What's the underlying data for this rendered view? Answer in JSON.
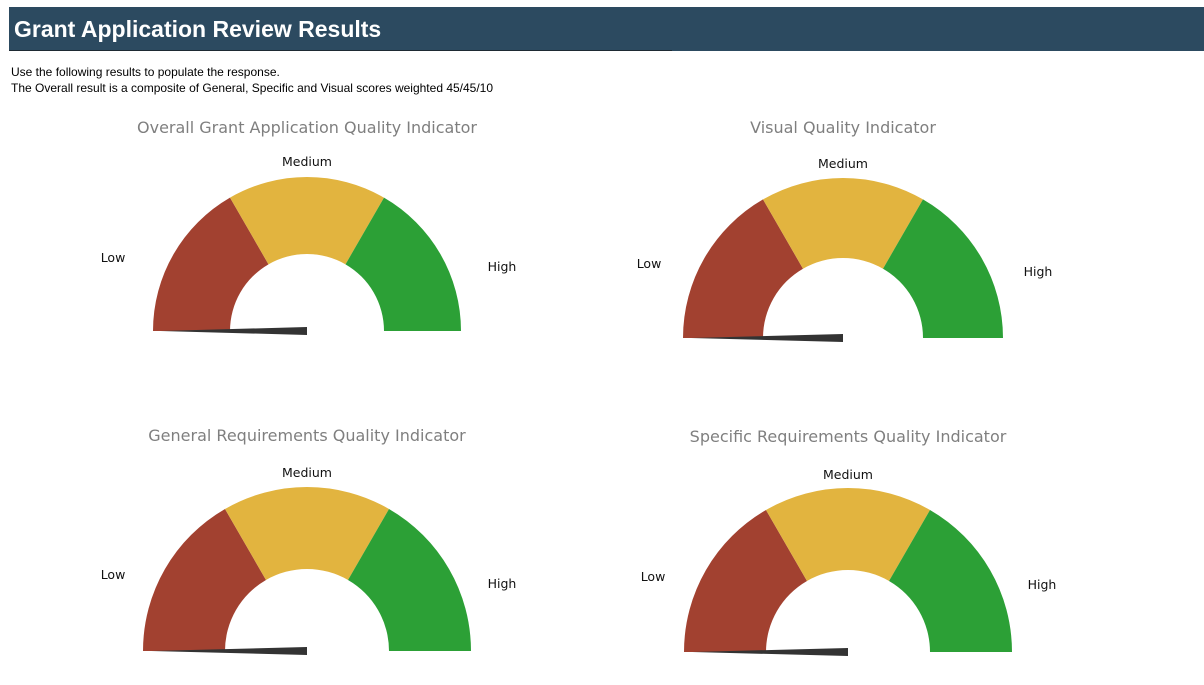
{
  "header": {
    "title": "Grant Application Review Results"
  },
  "notes": {
    "line1": "Use the following results to populate the response.",
    "line2": "The Overall result is a composite of General, Specific and Visual scores weighted 45/45/10"
  },
  "colors": {
    "header_bg": "#2c4a60",
    "low": "#a24130",
    "medium": "#e2b43f",
    "high": "#2ca036",
    "needle": "#333333"
  },
  "chart_data": [
    {
      "type": "gauge",
      "title": "Overall Grant Application Quality Indicator",
      "bands": [
        {
          "label": "Low",
          "from": 0,
          "to": 1
        },
        {
          "label": "Medium",
          "from": 1,
          "to": 2
        },
        {
          "label": "High",
          "from": 2,
          "to": 3
        }
      ],
      "range": [
        0,
        3
      ],
      "value": 0
    },
    {
      "type": "gauge",
      "title": "Visual Quality Indicator",
      "bands": [
        {
          "label": "Low",
          "from": 0,
          "to": 1
        },
        {
          "label": "Medium",
          "from": 1,
          "to": 2
        },
        {
          "label": "High",
          "from": 2,
          "to": 3
        }
      ],
      "range": [
        0,
        3
      ],
      "value": 0
    },
    {
      "type": "gauge",
      "title": "General Requirements Quality Indicator",
      "bands": [
        {
          "label": "Low",
          "from": 0,
          "to": 1
        },
        {
          "label": "Medium",
          "from": 1,
          "to": 2
        },
        {
          "label": "High",
          "from": 2,
          "to": 3
        }
      ],
      "range": [
        0,
        3
      ],
      "value": 0
    },
    {
      "type": "gauge",
      "title": "Specific Requirements Quality Indicator",
      "bands": [
        {
          "label": "Low",
          "from": 0,
          "to": 1
        },
        {
          "label": "Medium",
          "from": 1,
          "to": 2
        },
        {
          "label": "High",
          "from": 2,
          "to": 3
        }
      ],
      "range": [
        0,
        3
      ],
      "value": 0
    }
  ]
}
